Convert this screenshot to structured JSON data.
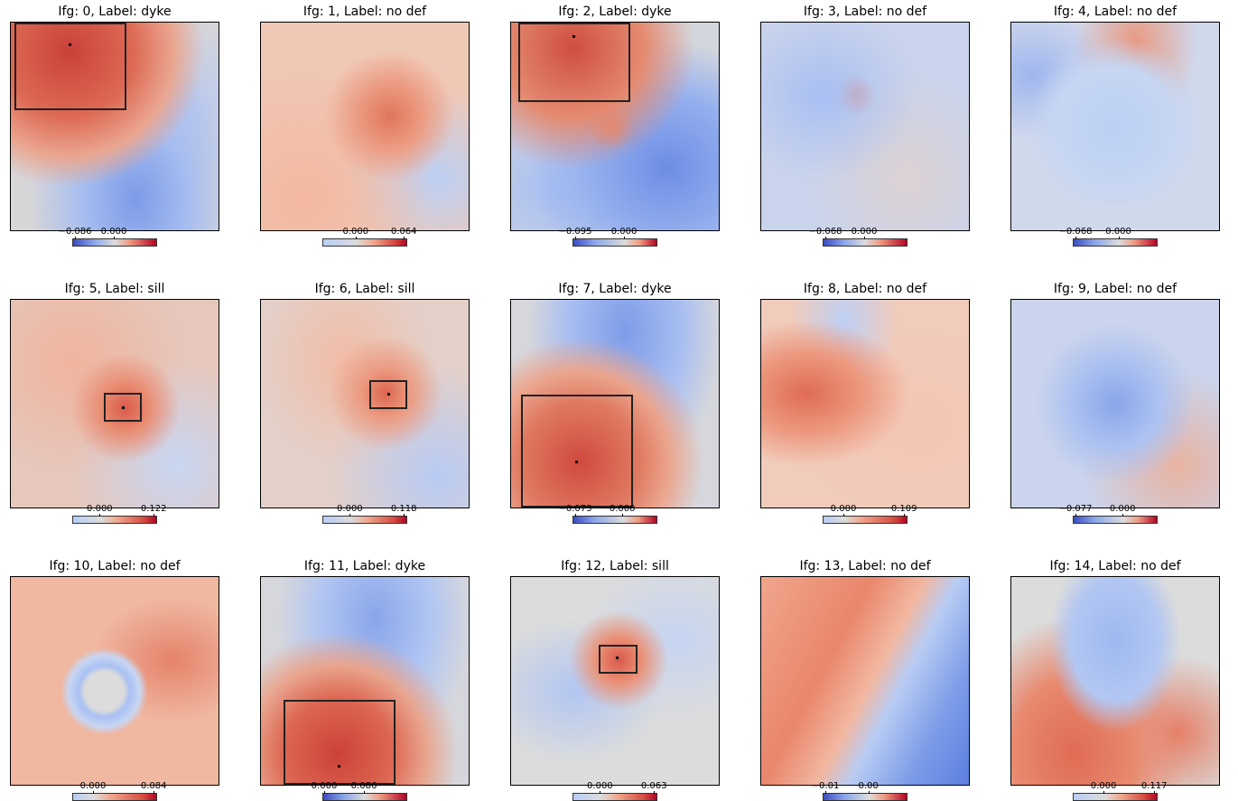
{
  "panels": [
    {
      "title": "Ifg: 0, Label: dyke",
      "ticks": [
        "−0.086",
        "0.000"
      ],
      "zero": 0.5,
      "bg": "radial-gradient(circle at 28% 14%, #c9413a 0%, #dd6a55 28%, #eaa690 45%, transparent 58%), radial-gradient(ellipse at 60% 85%, #7d9be8 0%, #a6bdf0 30%, transparent 60%), radial-gradient(ellipse at 80% 40%, #b8c9f0 0%, transparent 50%), #d7d5d8",
      "box": true,
      "dot": true
    },
    {
      "title": "Ifg: 1, Label: no def",
      "ticks": [
        "0.000",
        "0.064"
      ],
      "zero": 0.4,
      "bg": "radial-gradient(circle at 62% 45%, #e0755c 0%, #ec9e85 20%, transparent 38%), radial-gradient(ellipse at 20% 85%, #f3b8a0 0%, transparent 55%), radial-gradient(ellipse at 85% 75%, #bcd0f4 0%, transparent 40%), #f0c8b6",
      "box": false,
      "dot": false
    },
    {
      "title": "Ifg: 2, Label: dyke",
      "ticks": [
        "−0.095",
        "0.000"
      ],
      "zero": 0.62,
      "bg": "radial-gradient(circle at 30% 12%, #cf4e42 0%, #e48a70 30%, transparent 52%), radial-gradient(circle at 48% 50%, #e8866a 0%, transparent 16%), radial-gradient(ellipse at 75% 70%, #6d8de4 0%, #95b0ef 35%, transparent 62%), radial-gradient(ellipse at 20% 80%, #a9c0f2 0%, transparent 50%), #d4d6de",
      "box": true,
      "dot": true
    },
    {
      "title": "Ifg: 3, Label: no def",
      "ticks": [
        "−0.068",
        "0.000"
      ],
      "zero": 0.5,
      "bg": "radial-gradient(ellipse at 30% 35%, #a9bff2 0%, transparent 45%), radial-gradient(circle at 45% 35%, #e8917a 0%, transparent 12%), radial-gradient(ellipse at 70% 75%, #dcd2d3 0%, transparent 50%), #c9d3ec",
      "box": false,
      "dot": false
    },
    {
      "title": "Ifg: 4, Label: no def",
      "ticks": [
        "−0.068",
        "0.000"
      ],
      "zero": 0.55,
      "bg": "radial-gradient(ellipse at 50% 50%, #bcd0f4 0%, #c6d6f3 40%, transparent 60%), radial-gradient(ellipse at 60% 10%, #e89a82 0%, transparent 35%), radial-gradient(ellipse at 10% 25%, #9fb6ee 0%, transparent 30%), #d0d8ec",
      "box": false,
      "dot": false
    },
    {
      "title": "Ifg: 5, Label: sill",
      "ticks": [
        "0.000",
        "0.122"
      ],
      "zero": 0.33,
      "bg": "radial-gradient(circle at 55% 52%, #d9594a 0%, #e98c72 15%, transparent 35%), radial-gradient(ellipse at 30% 30%, #f0b49e 0%, transparent 55%), radial-gradient(ellipse at 80% 80%, #c8d6f2 0%, transparent 45%), #e6c7bc",
      "box": true,
      "dot": true
    },
    {
      "title": "Ifg: 6, Label: sill",
      "ticks": [
        "0.000",
        "0.118"
      ],
      "zero": 0.33,
      "bg": "radial-gradient(circle at 60% 45%, #dc644f 0%, #eb9a80 14%, transparent 34%), radial-gradient(ellipse at 40% 30%, #f2bca6 0%, transparent 50%), radial-gradient(ellipse at 85% 85%, #b8cbf3 0%, transparent 45%), #e4d0c9",
      "box": true,
      "dot": true
    },
    {
      "title": "Ifg: 7, Label: dyke",
      "ticks": [
        "−0.073",
        "0.000"
      ],
      "zero": 0.6,
      "bg": "radial-gradient(circle at 33% 78%, #cf4a3f 0%, #e07a62 28%, #eba58d 42%, transparent 58%), radial-gradient(ellipse at 55% 15%, #7e9ce8 0%, #a8bef1 35%, transparent 60%), #d6d7dc",
      "box": true,
      "dot": true
    },
    {
      "title": "Ifg: 8, Label: no def",
      "ticks": [
        "0.000",
        "0.109"
      ],
      "zero": 0.25,
      "bg": "radial-gradient(ellipse at 22% 45%, #e06b55 0%, #ec9a80 25%, transparent 45%), radial-gradient(ellipse at 40% 10%, #bed0f4 0%, transparent 30%), radial-gradient(ellipse at 75% 60%, #f4c6b4 0%, transparent 55%), #f1cbbb",
      "box": false,
      "dot": false
    },
    {
      "title": "Ifg: 9, Label: no def",
      "ticks": [
        "−0.077",
        "0.000"
      ],
      "zero": 0.6,
      "bg": "radial-gradient(ellipse at 50% 50%, #8aa6ea 0%, #adc2f1 30%, transparent 55%), radial-gradient(ellipse at 80% 80%, #e8b3a1 0%, transparent 40%), #cbd4ec",
      "box": false,
      "dot": false
    },
    {
      "title": "Ifg: 10, Label: no def",
      "ticks": [
        "0.000",
        "0.084"
      ],
      "zero": 0.25,
      "bg": "radial-gradient(circle at 45% 55%, #dcdcdc 0%, #dcdcdc 12%, #a9c0f3 16%, #c8d6f3 22%, transparent 27%), radial-gradient(ellipse at 78% 40%, #e5836a 0%, transparent 35%), #f0b7a1",
      "box": false,
      "dot": false
    },
    {
      "title": "Ifg: 11, Label: dyke",
      "ticks": [
        "0.000",
        "0.086"
      ],
      "zero": 0.5,
      "bg": "radial-gradient(circle at 37% 85%, #cc4139 0%, #dc6752 25%, #e9a48d 40%, transparent 55%), radial-gradient(ellipse at 55% 20%, #8aa6ea 0%, #b2c6f2 35%, transparent 60%), #d6d7dc",
      "box": true,
      "dot": true
    },
    {
      "title": "Ifg: 12, Label: sill",
      "ticks": [
        "0.000",
        "0.063"
      ],
      "zero": 0.33,
      "bg": "radial-gradient(circle at 52% 40%, #d9594a 0%, #ea9278 14%, transparent 30%), radial-gradient(ellipse at 30% 55%, #b2c6f2 0%, transparent 45%), radial-gradient(ellipse at 80% 30%, #c6d4f2 0%, transparent 40%), #dcdcdc",
      "box": true,
      "dot": true
    },
    {
      "title": "Ifg: 13, Label: no def",
      "ticks": [
        "−0.01",
        "0.00"
      ],
      "zero": 0.55,
      "bg": "linear-gradient(118deg, #f0a68c 0%, #e9866c 35%, #f2b7a0 52%, #b9ccf3 62%, #7d9de8 80%, #5b7fe0 100%)",
      "box": false,
      "dot": false
    },
    {
      "title": "Ifg: 14, Label: no def",
      "ticks": [
        "0.000",
        "0.117"
      ],
      "zero": 0.37,
      "bg": "radial-gradient(ellipse at 50% 30%, #9fb8f0 0%, #b3c7f2 30%, transparent 45%), radial-gradient(ellipse at 30% 85%, #e06b55 0%, #e88a70 30%, transparent 55%), radial-gradient(ellipse at 80% 75%, #e57f66 0%, transparent 35%), #dcdcdc",
      "box": false,
      "dot": false
    }
  ]
}
